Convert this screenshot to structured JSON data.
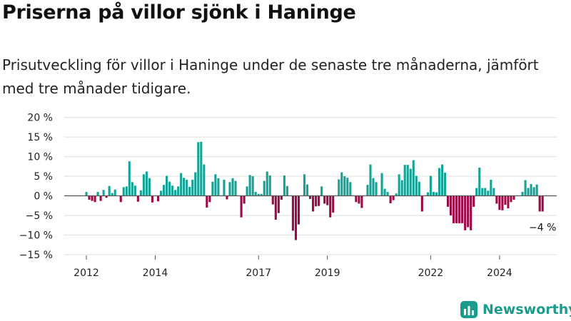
{
  "header": {
    "title": "Priserna på villor sjönk i Haninge",
    "subtitle": "Prisutveckling för villor i Haninge under de senaste tre månaderna, jämfört med tre månader tidigare."
  },
  "brand": {
    "name": "Newsworthy",
    "color": "#1a9c8c",
    "icon": "bar-chart-icon"
  },
  "chart_data": {
    "type": "bar",
    "title": "",
    "xlabel": "",
    "ylabel": "",
    "ylim": [
      -15,
      20
    ],
    "y_ticks": [
      -15,
      -10,
      -5,
      0,
      5,
      10,
      15,
      20
    ],
    "y_tick_labels": [
      "−15 %",
      "−10 %",
      "−5 %",
      "0 %",
      "5 %",
      "10 %",
      "15 %",
      "20 %"
    ],
    "x_tick_labels": [
      "2012",
      "2014",
      "2017",
      "2019",
      "2022",
      "2024"
    ],
    "x_tick_index": [
      0,
      24,
      60,
      84,
      120,
      144
    ],
    "grid": true,
    "colors": {
      "positive": "#16a396",
      "negative": "#9b0a47"
    },
    "annotation": {
      "label": "−4 %",
      "value": -4
    },
    "values": [
      1,
      -1,
      -1.3,
      -1.6,
      1,
      -1.3,
      1.5,
      -0.5,
      2.5,
      0.7,
      1.6,
      0,
      -1.6,
      2.2,
      2.4,
      8.8,
      3.5,
      2.6,
      -1.5,
      1.4,
      5.5,
      6.2,
      4.5,
      -1.7,
      0,
      -1.4,
      1.3,
      2.8,
      5.1,
      3.6,
      2.6,
      1.5,
      2.4,
      5.8,
      4.6,
      4.1,
      2.3,
      4.1,
      6,
      13.7,
      13.8,
      8,
      -3,
      -1.6,
      3.6,
      5.5,
      4.5,
      0,
      4.1,
      -0.9,
      3.5,
      4.5,
      3.8,
      0,
      -5.5,
      -2,
      2.4,
      5.3,
      5,
      1,
      0.5,
      0.5,
      3.8,
      6.2,
      5.2,
      -2.2,
      -6.1,
      -4.4,
      -1,
      5.2,
      2.5,
      0,
      -8.9,
      -11.3,
      -7.3,
      0,
      5.5,
      2.9,
      -0.8,
      -4,
      -2.7,
      -2.6,
      2.4,
      -2,
      -2.4,
      -5.5,
      -4.3,
      0,
      4.2,
      6,
      5,
      4.6,
      3.5,
      0,
      -1.6,
      -2,
      -3.1,
      0,
      2.8,
      8,
      4.5,
      3.5,
      0,
      5.8,
      1.8,
      1,
      -1.9,
      -1.1,
      0.6,
      5.5,
      4,
      7.9,
      7.9,
      6.9,
      9.1,
      5.1,
      3.6,
      -4,
      0,
      0.9,
      5.1,
      1,
      0.9,
      7.1,
      8,
      5.9,
      -2.8,
      -5,
      -7,
      -7,
      -7,
      -7,
      -8.8,
      -8,
      -8.8,
      -2.8,
      2,
      7.2,
      2,
      2,
      1.3,
      4.1,
      2,
      -2,
      -3.6,
      -3.7,
      -2.3,
      -3.2,
      -1.6,
      -1,
      0,
      0,
      1,
      4,
      2,
      3,
      2.2,
      2.9,
      -4,
      -4
    ]
  }
}
